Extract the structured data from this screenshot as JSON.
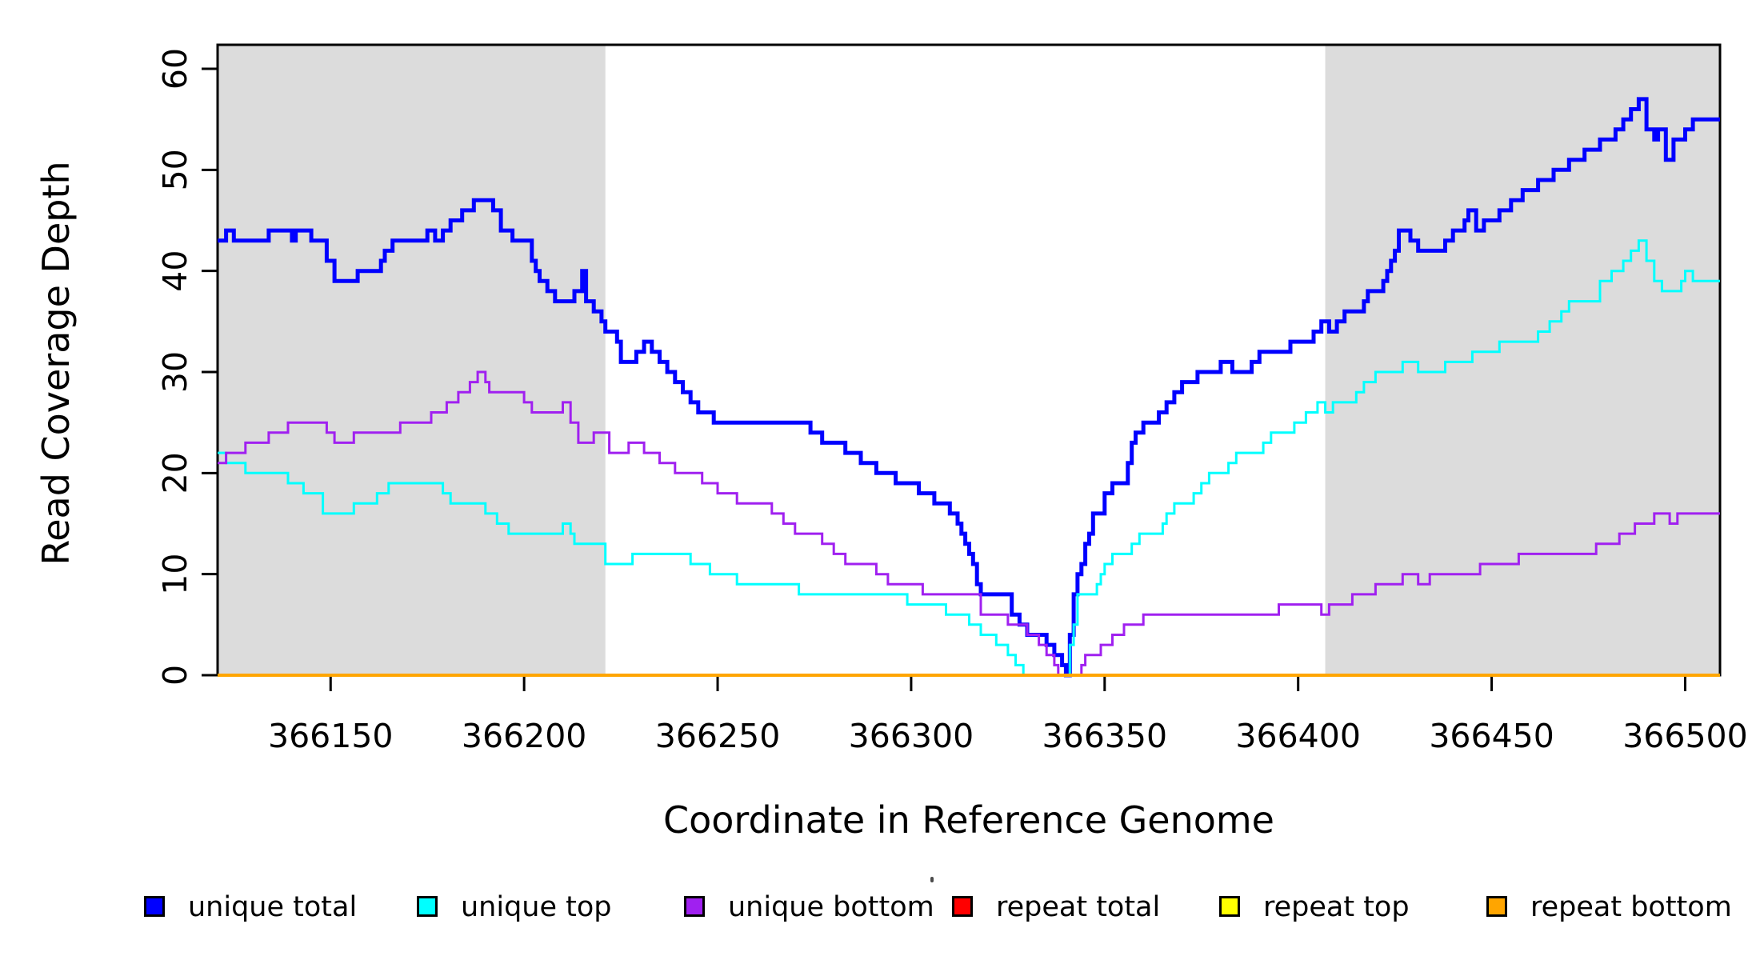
{
  "chart_data": {
    "type": "line",
    "subtype": "step",
    "title": "",
    "xlabel": "Coordinate in Reference Genome",
    "ylabel": "Read Coverage Depth",
    "xlim": [
      366120.8,
      366509
    ],
    "ylim": [
      0,
      60
    ],
    "x_ticks": [
      366150,
      366200,
      366250,
      366300,
      366350,
      366400,
      366450,
      366500
    ],
    "y_ticks": [
      0,
      10,
      20,
      30,
      40,
      50,
      60
    ],
    "grid": false,
    "background_color": "#ffffff",
    "shaded_region_color": "#DCDCDC",
    "shaded_regions": [
      {
        "from": 366120.8,
        "to": 366221
      },
      {
        "from": 366407,
        "to": 366509
      }
    ],
    "legend": {
      "position": "bottom",
      "items": [
        {
          "label": "unique total",
          "color": "#0000FF"
        },
        {
          "label": "unique top",
          "color": "#00FFFF"
        },
        {
          "label": "unique bottom",
          "color": "#A020F0"
        },
        {
          "label": "repeat total",
          "color": "#FF0000"
        },
        {
          "label": "repeat top",
          "color": "#FFFF00"
        },
        {
          "label": "repeat bottom",
          "color": "#FFA500"
        }
      ]
    },
    "series": [
      {
        "name": "unique total",
        "color": "#0000FF",
        "width": 5,
        "points": [
          [
            366120.8,
            43
          ],
          [
            366123,
            44
          ],
          [
            366125,
            43
          ],
          [
            366134,
            44
          ],
          [
            366140,
            43
          ],
          [
            366141,
            44
          ],
          [
            366145,
            43
          ],
          [
            366149,
            41
          ],
          [
            366151,
            39
          ],
          [
            366157,
            40
          ],
          [
            366163,
            41
          ],
          [
            366164,
            42
          ],
          [
            366166,
            43
          ],
          [
            366175,
            44
          ],
          [
            366177,
            43
          ],
          [
            366179,
            44
          ],
          [
            366181,
            45
          ],
          [
            366184,
            46
          ],
          [
            366187,
            47
          ],
          [
            366192,
            46
          ],
          [
            366194,
            44
          ],
          [
            366197,
            43
          ],
          [
            366202,
            41
          ],
          [
            366203,
            40
          ],
          [
            366204,
            39
          ],
          [
            366206,
            38
          ],
          [
            366208,
            37
          ],
          [
            366213,
            38
          ],
          [
            366215,
            40
          ],
          [
            366216,
            37
          ],
          [
            366218,
            36
          ],
          [
            366220,
            35
          ],
          [
            366221,
            34
          ],
          [
            366224,
            33
          ],
          [
            366225,
            31
          ],
          [
            366229,
            32
          ],
          [
            366231,
            33
          ],
          [
            366233,
            32
          ],
          [
            366235,
            31
          ],
          [
            366237,
            30
          ],
          [
            366239,
            29
          ],
          [
            366241,
            28
          ],
          [
            366243,
            27
          ],
          [
            366245,
            26
          ],
          [
            366249,
            25
          ],
          [
            366274,
            24
          ],
          [
            366277,
            23
          ],
          [
            366283,
            22
          ],
          [
            366287,
            21
          ],
          [
            366291,
            20
          ],
          [
            366296,
            19
          ],
          [
            366302,
            18
          ],
          [
            366306,
            17
          ],
          [
            366310,
            16
          ],
          [
            366312,
            15
          ],
          [
            366313,
            14
          ],
          [
            366314,
            13
          ],
          [
            366315,
            12
          ],
          [
            366316,
            11
          ],
          [
            366317,
            9
          ],
          [
            366318,
            8
          ],
          [
            366326,
            6
          ],
          [
            366328,
            5
          ],
          [
            366330,
            4
          ],
          [
            366335,
            3
          ],
          [
            366337,
            2
          ],
          [
            366339,
            1
          ],
          [
            366340,
            0
          ],
          [
            366341,
            4
          ],
          [
            366342,
            8
          ],
          [
            366343,
            10
          ],
          [
            366344,
            11
          ],
          [
            366345,
            13
          ],
          [
            366346,
            14
          ],
          [
            366347,
            16
          ],
          [
            366350,
            18
          ],
          [
            366352,
            19
          ],
          [
            366356,
            21
          ],
          [
            366357,
            23
          ],
          [
            366358,
            24
          ],
          [
            366360,
            25
          ],
          [
            366364,
            26
          ],
          [
            366366,
            27
          ],
          [
            366368,
            28
          ],
          [
            366370,
            29
          ],
          [
            366374,
            30
          ],
          [
            366380,
            31
          ],
          [
            366383,
            30
          ],
          [
            366388,
            31
          ],
          [
            366390,
            32
          ],
          [
            366398,
            33
          ],
          [
            366404,
            34
          ],
          [
            366406,
            35
          ],
          [
            366408,
            34
          ],
          [
            366410,
            35
          ],
          [
            366412,
            36
          ],
          [
            366417,
            37
          ],
          [
            366418,
            38
          ],
          [
            366422,
            39
          ],
          [
            366423,
            40
          ],
          [
            366424,
            41
          ],
          [
            366425,
            42
          ],
          [
            366426,
            44
          ],
          [
            366429,
            43
          ],
          [
            366431,
            42
          ],
          [
            366438,
            43
          ],
          [
            366440,
            44
          ],
          [
            366443,
            45
          ],
          [
            366444,
            46
          ],
          [
            366446,
            44
          ],
          [
            366448,
            45
          ],
          [
            366452,
            46
          ],
          [
            366455,
            47
          ],
          [
            366458,
            48
          ],
          [
            366462,
            49
          ],
          [
            366466,
            50
          ],
          [
            366470,
            51
          ],
          [
            366474,
            52
          ],
          [
            366478,
            53
          ],
          [
            366482,
            54
          ],
          [
            366484,
            55
          ],
          [
            366486,
            56
          ],
          [
            366488,
            57
          ],
          [
            366490,
            54
          ],
          [
            366492,
            53
          ],
          [
            366493,
            54
          ],
          [
            366495,
            51
          ],
          [
            366497,
            53
          ],
          [
            366500,
            54
          ],
          [
            366502,
            55
          ],
          [
            366509,
            55
          ]
        ]
      },
      {
        "name": "unique top",
        "color": "#00FFFF",
        "width": 3,
        "points": [
          [
            366120.8,
            22
          ],
          [
            366123,
            21
          ],
          [
            366128,
            20
          ],
          [
            366139,
            19
          ],
          [
            366143,
            18
          ],
          [
            366148,
            16
          ],
          [
            366156,
            17
          ],
          [
            366162,
            18
          ],
          [
            366165,
            19
          ],
          [
            366179,
            18
          ],
          [
            366181,
            17
          ],
          [
            366190,
            16
          ],
          [
            366193,
            15
          ],
          [
            366196,
            14
          ],
          [
            366210,
            15
          ],
          [
            366212,
            14
          ],
          [
            366213,
            13
          ],
          [
            366221,
            11
          ],
          [
            366228,
            12
          ],
          [
            366243,
            11
          ],
          [
            366248,
            10
          ],
          [
            366255,
            9
          ],
          [
            366271,
            8
          ],
          [
            366299,
            7
          ],
          [
            366309,
            6
          ],
          [
            366315,
            5
          ],
          [
            366318,
            4
          ],
          [
            366322,
            3
          ],
          [
            366325,
            2
          ],
          [
            366327,
            1
          ],
          [
            366329,
            0
          ],
          [
            366341,
            3
          ],
          [
            366342,
            5
          ],
          [
            366343,
            8
          ],
          [
            366348,
            9
          ],
          [
            366349,
            10
          ],
          [
            366350,
            11
          ],
          [
            366352,
            12
          ],
          [
            366357,
            13
          ],
          [
            366359,
            14
          ],
          [
            366365,
            15
          ],
          [
            366366,
            16
          ],
          [
            366368,
            17
          ],
          [
            366373,
            18
          ],
          [
            366375,
            19
          ],
          [
            366377,
            20
          ],
          [
            366382,
            21
          ],
          [
            366384,
            22
          ],
          [
            366391,
            23
          ],
          [
            366393,
            24
          ],
          [
            366399,
            25
          ],
          [
            366402,
            26
          ],
          [
            366405,
            27
          ],
          [
            366407,
            26
          ],
          [
            366409,
            27
          ],
          [
            366415,
            28
          ],
          [
            366417,
            29
          ],
          [
            366420,
            30
          ],
          [
            366427,
            31
          ],
          [
            366431,
            30
          ],
          [
            366438,
            31
          ],
          [
            366445,
            32
          ],
          [
            366452,
            33
          ],
          [
            366462,
            34
          ],
          [
            366465,
            35
          ],
          [
            366468,
            36
          ],
          [
            366470,
            37
          ],
          [
            366478,
            39
          ],
          [
            366481,
            40
          ],
          [
            366484,
            41
          ],
          [
            366486,
            42
          ],
          [
            366488,
            43
          ],
          [
            366490,
            41
          ],
          [
            366492,
            39
          ],
          [
            366494,
            38
          ],
          [
            366499,
            39
          ],
          [
            366500,
            40
          ],
          [
            366502,
            39
          ],
          [
            366509,
            39
          ]
        ]
      },
      {
        "name": "unique bottom",
        "color": "#A020F0",
        "width": 3,
        "points": [
          [
            366120.8,
            21
          ],
          [
            366123,
            22
          ],
          [
            366128,
            23
          ],
          [
            366134,
            24
          ],
          [
            366139,
            25
          ],
          [
            366149,
            24
          ],
          [
            366151,
            23
          ],
          [
            366156,
            24
          ],
          [
            366168,
            25
          ],
          [
            366176,
            26
          ],
          [
            366180,
            27
          ],
          [
            366183,
            28
          ],
          [
            366186,
            29
          ],
          [
            366188,
            30
          ],
          [
            366190,
            29
          ],
          [
            366191,
            28
          ],
          [
            366200,
            27
          ],
          [
            366202,
            26
          ],
          [
            366210,
            27
          ],
          [
            366212,
            25
          ],
          [
            366214,
            23
          ],
          [
            366218,
            24
          ],
          [
            366222,
            22
          ],
          [
            366227,
            23
          ],
          [
            366231,
            22
          ],
          [
            366235,
            21
          ],
          [
            366239,
            20
          ],
          [
            366246,
            19
          ],
          [
            366250,
            18
          ],
          [
            366255,
            17
          ],
          [
            366264,
            16
          ],
          [
            366267,
            15
          ],
          [
            366270,
            14
          ],
          [
            366277,
            13
          ],
          [
            366280,
            12
          ],
          [
            366283,
            11
          ],
          [
            366291,
            10
          ],
          [
            366294,
            9
          ],
          [
            366303,
            8
          ],
          [
            366318,
            6
          ],
          [
            366325,
            5
          ],
          [
            366330,
            4
          ],
          [
            366333,
            3
          ],
          [
            366335,
            2
          ],
          [
            366337,
            1
          ],
          [
            366338,
            0
          ],
          [
            366344,
            1
          ],
          [
            366345,
            2
          ],
          [
            366349,
            3
          ],
          [
            366352,
            4
          ],
          [
            366355,
            5
          ],
          [
            366360,
            6
          ],
          [
            366395,
            7
          ],
          [
            366406,
            6
          ],
          [
            366408,
            7
          ],
          [
            366414,
            8
          ],
          [
            366420,
            9
          ],
          [
            366427,
            10
          ],
          [
            366431,
            9
          ],
          [
            366434,
            10
          ],
          [
            366447,
            11
          ],
          [
            366457,
            12
          ],
          [
            366477,
            13
          ],
          [
            366483,
            14
          ],
          [
            366487,
            15
          ],
          [
            366492,
            16
          ],
          [
            366496,
            15
          ],
          [
            366498,
            16
          ],
          [
            366509,
            16
          ]
        ]
      },
      {
        "name": "repeat total",
        "color": "#FF0000",
        "width": 3,
        "points": [
          [
            366120.8,
            0
          ],
          [
            366509,
            0
          ]
        ]
      },
      {
        "name": "repeat top",
        "color": "#FFFF00",
        "width": 3,
        "points": [
          [
            366120.8,
            0
          ],
          [
            366509,
            0
          ]
        ]
      },
      {
        "name": "repeat bottom",
        "color": "#FFA500",
        "width": 4,
        "points": [
          [
            366120.8,
            0
          ],
          [
            366509,
            0
          ]
        ]
      }
    ]
  }
}
